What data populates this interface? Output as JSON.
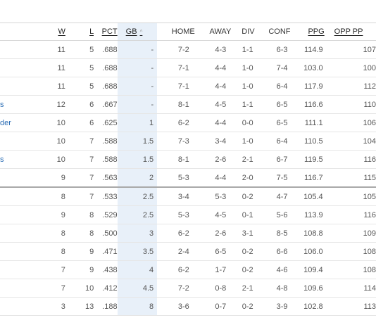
{
  "table": {
    "columns": {
      "w": "W",
      "l": "L",
      "pct": "PCT",
      "gb": "GB",
      "home": "HOME",
      "away": "AWAY",
      "div": "DIV",
      "conf": "CONF",
      "ppg": "PPG",
      "opp_ppg": "OPP PP"
    },
    "sort_indicator": "^",
    "rows": [
      {
        "team": "",
        "w": "11",
        "l": "5",
        "pct": ".688",
        "gb": "-",
        "home": "7-2",
        "away": "4-3",
        "div": "1-1",
        "conf": "6-3",
        "ppg": "114.9",
        "opp_ppg": "107"
      },
      {
        "team": "",
        "w": "11",
        "l": "5",
        "pct": ".688",
        "gb": "-",
        "home": "7-1",
        "away": "4-4",
        "div": "1-0",
        "conf": "7-4",
        "ppg": "103.0",
        "opp_ppg": "100"
      },
      {
        "team": "",
        "w": "11",
        "l": "5",
        "pct": ".688",
        "gb": "-",
        "home": "7-1",
        "away": "4-4",
        "div": "1-0",
        "conf": "6-4",
        "ppg": "117.9",
        "opp_ppg": "112"
      },
      {
        "team": "s",
        "w": "12",
        "l": "6",
        "pct": ".667",
        "gb": "-",
        "home": "8-1",
        "away": "4-5",
        "div": "1-1",
        "conf": "6-5",
        "ppg": "116.6",
        "opp_ppg": "110"
      },
      {
        "team": "der",
        "w": "10",
        "l": "6",
        "pct": ".625",
        "gb": "1",
        "home": "6-2",
        "away": "4-4",
        "div": "0-0",
        "conf": "6-5",
        "ppg": "111.1",
        "opp_ppg": "106"
      },
      {
        "team": "",
        "w": "10",
        "l": "7",
        "pct": ".588",
        "gb": "1.5",
        "home": "7-3",
        "away": "3-4",
        "div": "1-0",
        "conf": "6-4",
        "ppg": "110.5",
        "opp_ppg": "104"
      },
      {
        "team": "s",
        "w": "10",
        "l": "7",
        "pct": ".588",
        "gb": "1.5",
        "home": "8-1",
        "away": "2-6",
        "div": "2-1",
        "conf": "6-7",
        "ppg": "119.5",
        "opp_ppg": "116"
      },
      {
        "team": "",
        "w": "9",
        "l": "7",
        "pct": ".563",
        "gb": "2",
        "home": "5-3",
        "away": "4-4",
        "div": "2-0",
        "conf": "7-5",
        "ppg": "116.7",
        "opp_ppg": "115"
      },
      {
        "team": "",
        "w": "8",
        "l": "7",
        "pct": ".533",
        "gb": "2.5",
        "home": "3-4",
        "away": "5-3",
        "div": "0-2",
        "conf": "4-7",
        "ppg": "105.4",
        "opp_ppg": "105"
      },
      {
        "team": "",
        "w": "9",
        "l": "8",
        "pct": ".529",
        "gb": "2.5",
        "home": "5-3",
        "away": "4-5",
        "div": "0-1",
        "conf": "5-6",
        "ppg": "113.9",
        "opp_ppg": "116"
      },
      {
        "team": "",
        "w": "8",
        "l": "8",
        "pct": ".500",
        "gb": "3",
        "home": "6-2",
        "away": "2-6",
        "div": "3-1",
        "conf": "8-5",
        "ppg": "108.8",
        "opp_ppg": "109"
      },
      {
        "team": "",
        "w": "8",
        "l": "9",
        "pct": ".471",
        "gb": "3.5",
        "home": "2-4",
        "away": "6-5",
        "div": "0-2",
        "conf": "6-6",
        "ppg": "106.0",
        "opp_ppg": "108"
      },
      {
        "team": "",
        "w": "7",
        "l": "9",
        "pct": ".438",
        "gb": "4",
        "home": "6-2",
        "away": "1-7",
        "div": "0-2",
        "conf": "4-6",
        "ppg": "109.4",
        "opp_ppg": "108"
      },
      {
        "team": "",
        "w": "7",
        "l": "10",
        "pct": ".412",
        "gb": "4.5",
        "home": "7-2",
        "away": "0-8",
        "div": "2-1",
        "conf": "4-8",
        "ppg": "109.6",
        "opp_ppg": "114"
      },
      {
        "team": "",
        "w": "3",
        "l": "13",
        "pct": ".188",
        "gb": "8",
        "home": "3-6",
        "away": "0-7",
        "div": "0-2",
        "conf": "3-9",
        "ppg": "102.8",
        "opp_ppg": "113"
      }
    ]
  }
}
